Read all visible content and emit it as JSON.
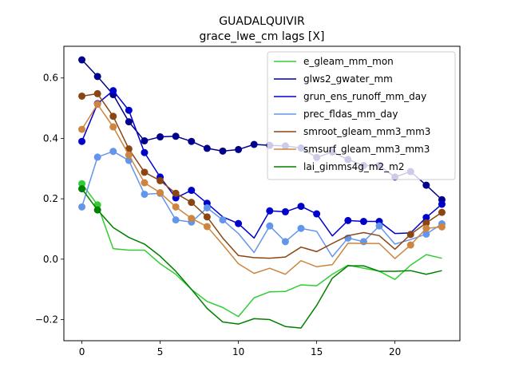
{
  "chart_data": {
    "type": "line",
    "title": "GUADALQUIVIR",
    "subtitle": "grace_lwe_cm lags [X]",
    "xlabel": "",
    "ylabel": "",
    "xlim": [
      -1.15,
      24.15
    ],
    "ylim": [
      -0.27,
      0.705
    ],
    "xticks": [
      0,
      5,
      10,
      15,
      20
    ],
    "yticks": [
      -0.2,
      0.0,
      0.2,
      0.4,
      0.6
    ],
    "ytick_labels": [
      "−0.2",
      "0.0",
      "0.2",
      "0.4",
      "0.6"
    ],
    "grid": false,
    "legend_position": "upper right",
    "series": [
      {
        "name": "e_gleam_mm_mon",
        "color": "#32cd32",
        "x": [
          0,
          1,
          2,
          3,
          4,
          5,
          6,
          7,
          8,
          9,
          10,
          11,
          12,
          13,
          14,
          15,
          16,
          17,
          18,
          19,
          20,
          21,
          22,
          23
        ],
        "y": [
          0.25,
          0.18,
          0.035,
          0.03,
          0.03,
          -0.015,
          -0.05,
          -0.1,
          -0.14,
          -0.16,
          -0.19,
          -0.128,
          -0.108,
          -0.107,
          -0.085,
          -0.088,
          -0.05,
          -0.02,
          -0.03,
          -0.04,
          -0.067,
          -0.02,
          0.015,
          0.003
        ],
        "markers": [
          0,
          1
        ]
      },
      {
        "name": "glws2_gwater_mm",
        "color": "#00008b",
        "x": [
          0,
          1,
          2,
          3,
          4,
          5,
          6,
          7,
          8,
          9,
          10,
          11,
          12,
          13,
          14,
          15,
          16,
          17,
          18,
          19,
          20,
          21,
          22,
          23
        ],
        "y": [
          0.66,
          0.605,
          0.545,
          0.455,
          0.392,
          0.405,
          0.407,
          0.39,
          0.367,
          0.358,
          0.363,
          0.38,
          0.377,
          0.375,
          0.368,
          0.337,
          0.355,
          0.33,
          0.31,
          0.31,
          0.272,
          0.29,
          0.245,
          0.197
        ],
        "markers": [
          0,
          1,
          2,
          3,
          4,
          5,
          6,
          7,
          8,
          9,
          10,
          11,
          12,
          13,
          14,
          15,
          16,
          17,
          18,
          19,
          20,
          21,
          22,
          23
        ]
      },
      {
        "name": "grun_ens_runoff_mm_day",
        "color": "#0000cd",
        "x": [
          0,
          1,
          2,
          3,
          4,
          5,
          6,
          7,
          8,
          9,
          10,
          11,
          12,
          13,
          14,
          15,
          16,
          17,
          18,
          19,
          20,
          21,
          22,
          23
        ],
        "y": [
          0.39,
          0.515,
          0.558,
          0.493,
          0.353,
          0.272,
          0.203,
          0.228,
          0.185,
          0.14,
          0.118,
          0.07,
          0.16,
          0.157,
          0.175,
          0.15,
          0.077,
          0.128,
          0.125,
          0.125,
          0.085,
          0.087,
          0.138,
          0.182
        ],
        "markers": [
          0,
          1,
          2,
          3,
          4,
          5,
          6,
          7,
          8,
          10,
          12,
          13,
          14,
          15,
          17,
          18,
          19,
          22,
          23
        ]
      },
      {
        "name": "prec_fldas_mm_day",
        "color": "#6495ed",
        "x": [
          0,
          1,
          2,
          3,
          4,
          5,
          6,
          7,
          8,
          9,
          10,
          11,
          12,
          13,
          14,
          15,
          16,
          17,
          18,
          19,
          20,
          21,
          22,
          23
        ],
        "y": [
          0.173,
          0.338,
          0.357,
          0.327,
          0.215,
          0.218,
          0.13,
          0.123,
          0.17,
          0.13,
          0.085,
          0.022,
          0.11,
          0.058,
          0.102,
          0.092,
          0.008,
          0.07,
          0.058,
          0.11,
          0.05,
          0.065,
          0.083,
          0.117
        ],
        "markers": [
          0,
          1,
          2,
          3,
          4,
          5,
          6,
          7,
          8,
          9,
          12,
          13,
          14,
          17,
          18,
          19,
          22,
          23
        ]
      },
      {
        "name": "smroot_gleam_mm3_mm3",
        "color": "#8b4513",
        "x": [
          0,
          1,
          2,
          3,
          4,
          5,
          6,
          7,
          8,
          9,
          10,
          11,
          12,
          13,
          14,
          15,
          16,
          17,
          18,
          19,
          20,
          21,
          22,
          23
        ],
        "y": [
          0.54,
          0.548,
          0.473,
          0.365,
          0.288,
          0.26,
          0.218,
          0.188,
          0.14,
          0.07,
          0.012,
          0.005,
          0.003,
          0.007,
          0.04,
          0.025,
          0.052,
          0.078,
          0.088,
          0.078,
          0.033,
          0.082,
          0.12,
          0.155
        ],
        "markers": [
          0,
          1,
          2,
          3,
          4,
          5,
          6,
          7,
          8,
          21,
          22,
          23
        ]
      },
      {
        "name": "smsurf_gleam_mm3_mm3",
        "color": "#cd853f",
        "x": [
          0,
          1,
          2,
          3,
          4,
          5,
          6,
          7,
          8,
          9,
          10,
          11,
          12,
          13,
          14,
          15,
          16,
          17,
          18,
          19,
          20,
          21,
          22,
          23
        ],
        "y": [
          0.43,
          0.513,
          0.438,
          0.345,
          0.253,
          0.22,
          0.173,
          0.135,
          0.108,
          0.048,
          -0.015,
          -0.047,
          -0.03,
          -0.05,
          -0.005,
          -0.025,
          -0.018,
          0.053,
          0.052,
          0.052,
          0.002,
          0.047,
          0.102,
          0.107
        ],
        "markers": [
          0,
          1,
          2,
          3,
          4,
          5,
          6,
          7,
          8,
          21,
          22,
          23
        ]
      },
      {
        "name": "lai_gimms4g_m2_m2",
        "color": "#008000",
        "x": [
          0,
          1,
          2,
          3,
          4,
          5,
          6,
          7,
          8,
          9,
          10,
          11,
          12,
          13,
          14,
          15,
          16,
          17,
          18,
          19,
          20,
          21,
          22,
          23
        ],
        "y": [
          0.233,
          0.163,
          0.105,
          0.072,
          0.05,
          0.01,
          -0.04,
          -0.1,
          -0.163,
          -0.208,
          -0.215,
          -0.197,
          -0.2,
          -0.223,
          -0.228,
          -0.153,
          -0.063,
          -0.022,
          -0.022,
          -0.04,
          -0.04,
          -0.038,
          -0.05,
          -0.038
        ],
        "markers": [
          0,
          1
        ]
      }
    ]
  }
}
